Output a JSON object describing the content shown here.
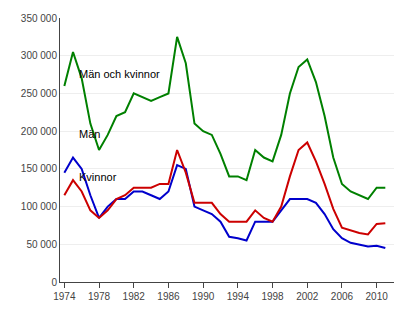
{
  "chart_data": {
    "type": "line",
    "x": [
      1974,
      1975,
      1976,
      1977,
      1978,
      1979,
      1980,
      1981,
      1982,
      1983,
      1984,
      1985,
      1986,
      1987,
      1988,
      1989,
      1990,
      1991,
      1992,
      1993,
      1994,
      1995,
      1996,
      1997,
      1998,
      1999,
      2000,
      2001,
      2002,
      2003,
      2004,
      2005,
      2006,
      2007,
      2008,
      2009,
      2010,
      2011
    ],
    "series": [
      {
        "name": "Män och kvinnor",
        "color": "#008000",
        "values": [
          260000,
          305000,
          270000,
          210000,
          175000,
          195000,
          220000,
          225000,
          250000,
          245000,
          240000,
          245000,
          250000,
          325000,
          290000,
          210000,
          200000,
          195000,
          170000,
          140000,
          140000,
          135000,
          175000,
          165000,
          160000,
          195000,
          250000,
          285000,
          295000,
          265000,
          220000,
          165000,
          130000,
          120000,
          115000,
          110000,
          125000,
          125000
        ]
      },
      {
        "name": "Män",
        "color": "#0000cc",
        "values": [
          145000,
          165000,
          150000,
          115000,
          85000,
          100000,
          110000,
          110000,
          120000,
          120000,
          115000,
          110000,
          120000,
          155000,
          150000,
          100000,
          95000,
          90000,
          80000,
          60000,
          58000,
          55000,
          80000,
          80000,
          80000,
          95000,
          110000,
          110000,
          110000,
          105000,
          90000,
          70000,
          58000,
          52000,
          50000,
          47000,
          48000,
          45000
        ]
      },
      {
        "name": "Kvinnor",
        "color": "#cc0000",
        "values": [
          115000,
          135000,
          120000,
          95000,
          85000,
          95000,
          110000,
          115000,
          125000,
          125000,
          125000,
          130000,
          130000,
          175000,
          145000,
          105000,
          105000,
          105000,
          90000,
          80000,
          80000,
          80000,
          95000,
          85000,
          80000,
          100000,
          140000,
          175000,
          185000,
          160000,
          130000,
          97000,
          72000,
          68000,
          65000,
          63000,
          77000,
          78000
        ]
      }
    ],
    "annotations": [
      {
        "text": "Män och kvinnor",
        "x": 1975.5,
        "y": 265000
      },
      {
        "text": "Män",
        "x": 1975.5,
        "y": 185000
      },
      {
        "text": "Kvinnor",
        "x": 1975.5,
        "y": 128000
      }
    ],
    "xlim": [
      1973.5,
      2012
    ],
    "xticks": [
      1974,
      1978,
      1982,
      1986,
      1990,
      1994,
      1998,
      2002,
      2006,
      2010
    ],
    "ylim": [
      0,
      350000
    ],
    "yticks": [
      0,
      {
        "value": 50000,
        "label": "50 000"
      },
      {
        "value": 100000,
        "label": "100 000"
      },
      {
        "value": 150000,
        "label": "150 000"
      },
      {
        "value": 200000,
        "label": "200 000"
      },
      {
        "value": 250000,
        "label": "250 000"
      },
      {
        "value": 300000,
        "label": "300 000"
      },
      {
        "value": 350000,
        "label": "350 000"
      }
    ],
    "grid": true
  }
}
